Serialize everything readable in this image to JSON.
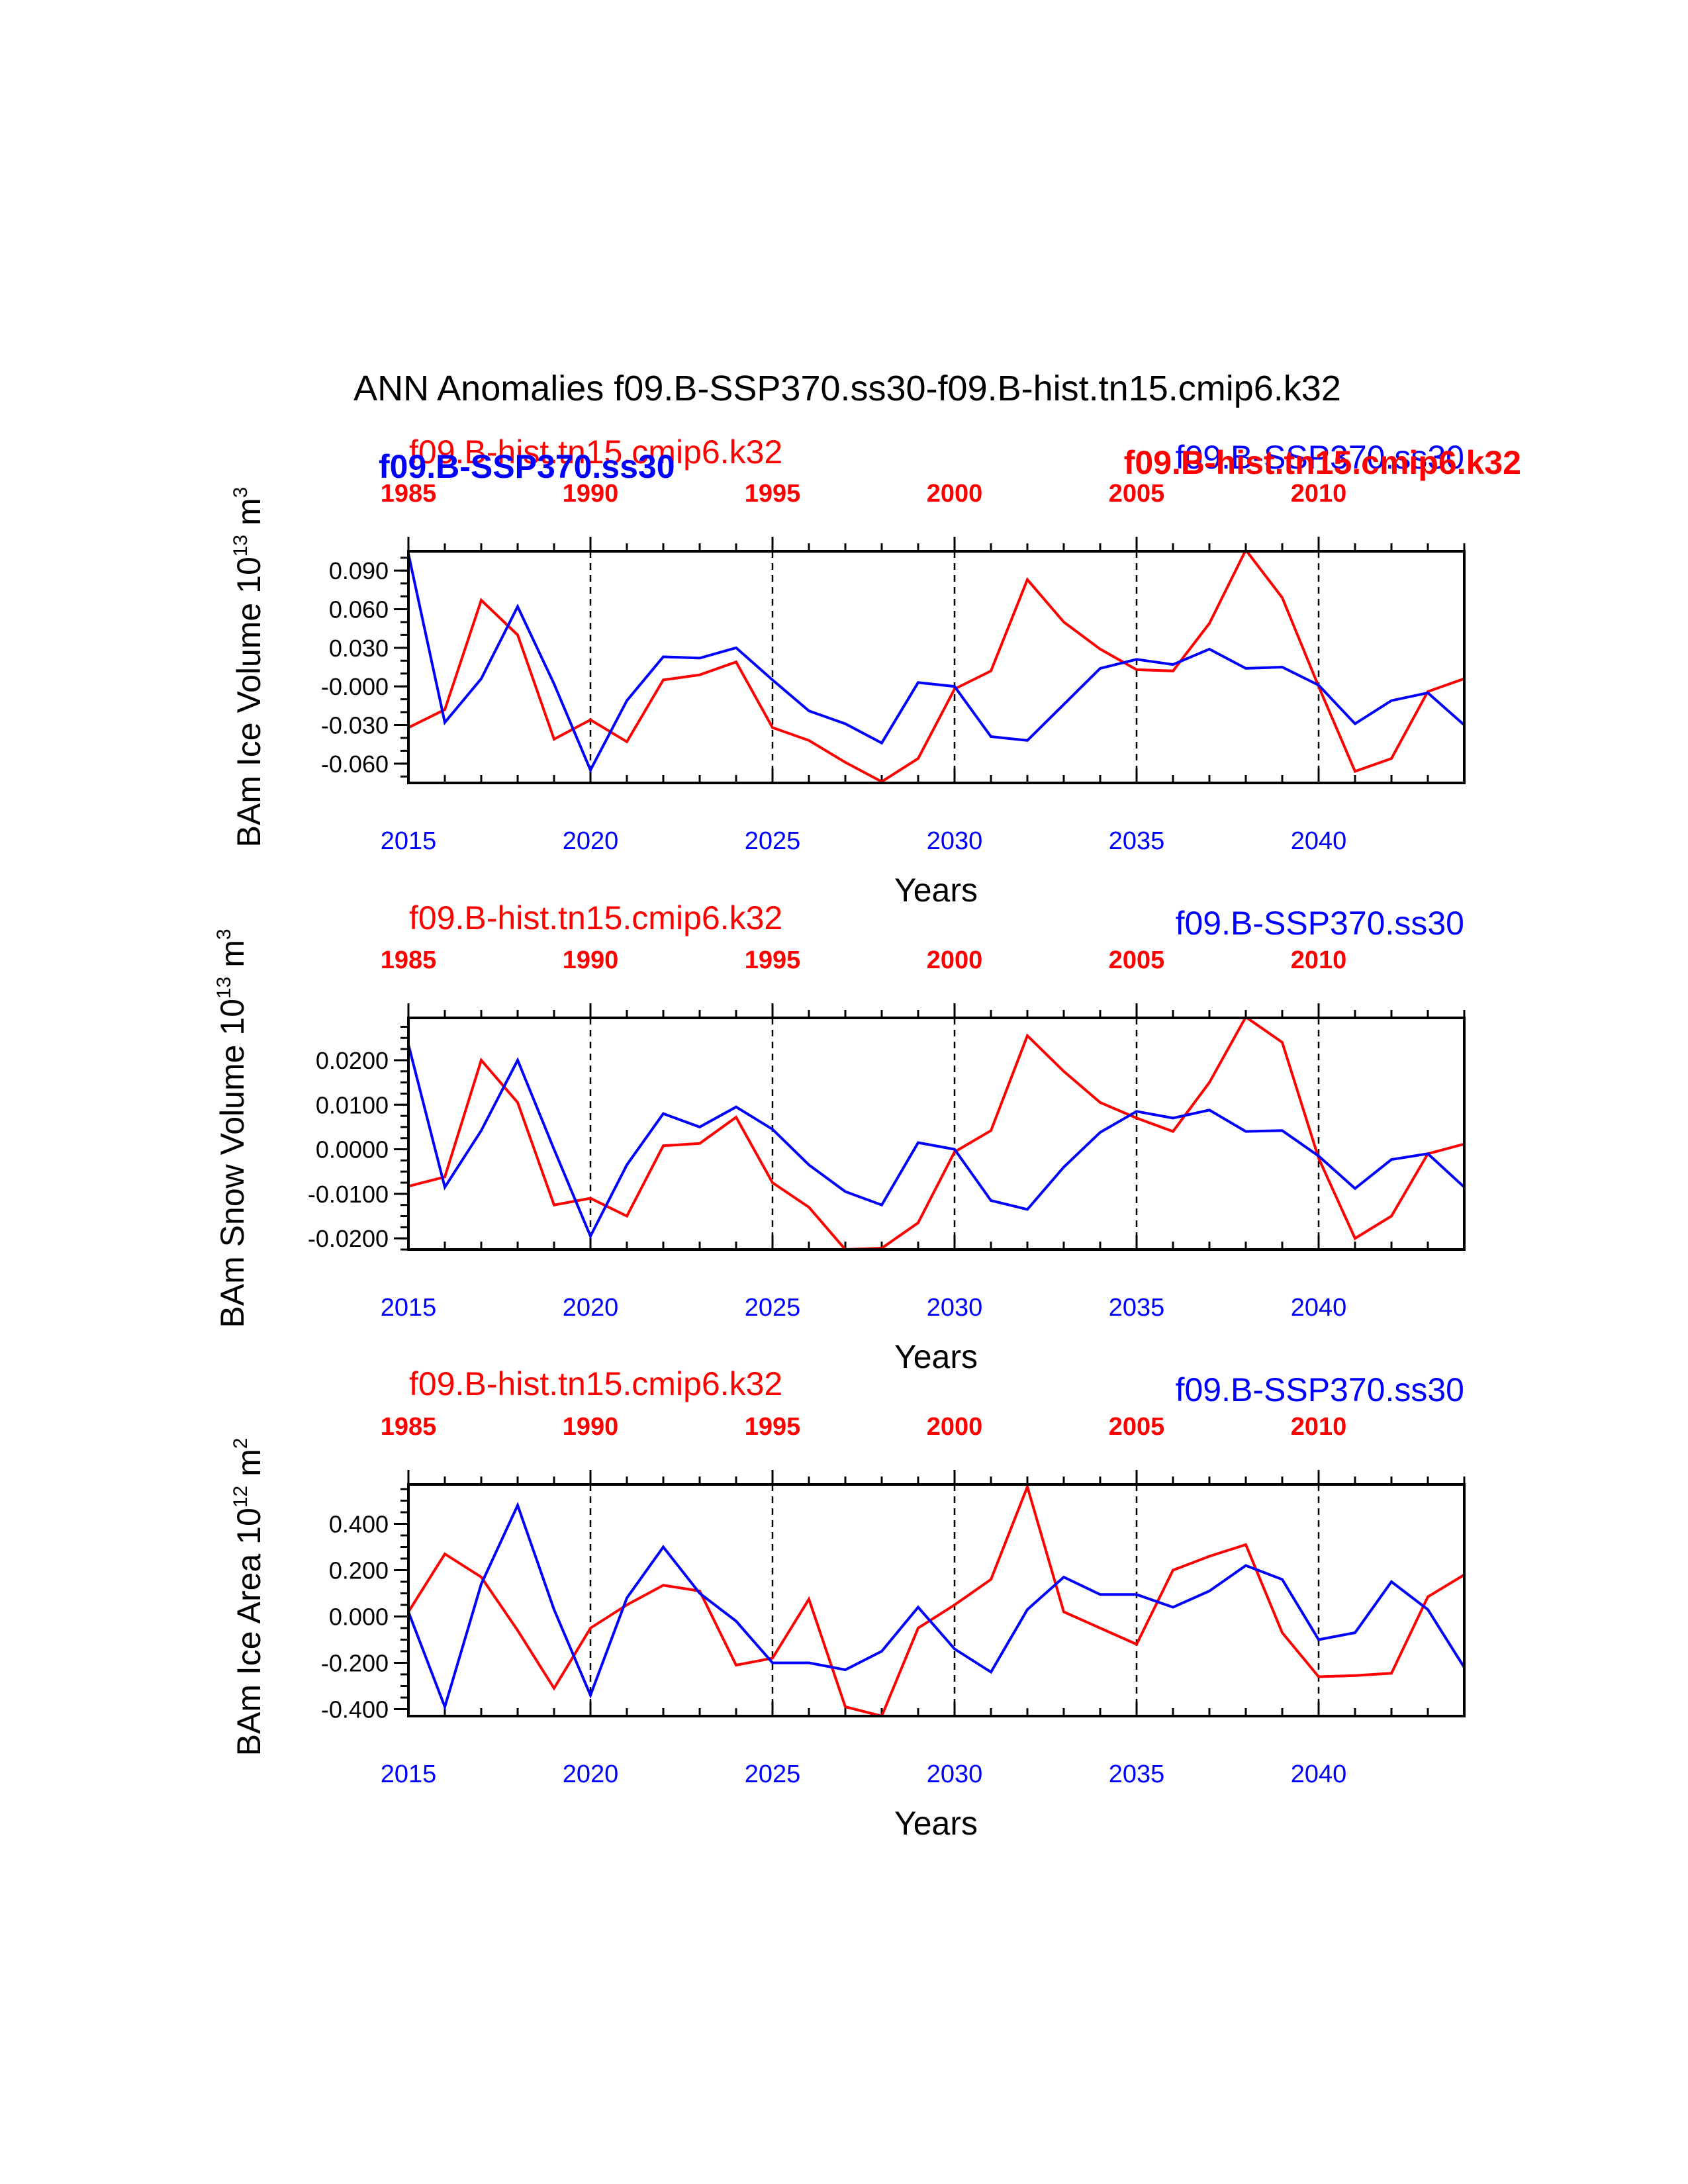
{
  "figure_title": "ANN Anomalies f09.B-SSP370.ss30-f09.B-hist.tn15.cmip6.k32",
  "colors": {
    "ssp": "#0000ff",
    "hist": "#ff0000",
    "axis": "#000000"
  },
  "overlay_labels": {
    "ssp_bold": "f09.B-SSP370.ss30",
    "hist_bold": "f09.B-hist.tn15.cmip6.k32"
  },
  "chart_data": [
    {
      "type": "line",
      "id": "ice-volume",
      "title_left": "f09.B-hist.tn15.cmip6.k32",
      "title_right": "f09.B-SSP370.ss30",
      "ylabel": "BAm Ice Volume 10",
      "ylabel_exp": "13",
      "ylabel_unit": " m",
      "ylabel_unit_exp": "3",
      "xlabel": "Years",
      "xlim": [
        2015,
        2044
      ],
      "ylim": [
        -0.075,
        0.105
      ],
      "yticks": [
        -0.06,
        -0.03,
        0.0,
        0.03,
        0.06,
        0.09
      ],
      "ytick_labels": [
        "-0.060",
        "-0.030",
        "-0.000",
        "0.030",
        "0.060",
        "0.090"
      ],
      "yminor_step": 0.01,
      "xticks_bottom": [
        2015,
        2020,
        2025,
        2030,
        2035,
        2040
      ],
      "xtick_labels_bottom": [
        "2015",
        "2020",
        "2025",
        "2030",
        "2035",
        "2040"
      ],
      "xtick_labels_top": [
        "1985",
        "1990",
        "1995",
        "2000",
        "2005",
        "2010"
      ],
      "gridlines_x": [
        2020,
        2025,
        2030,
        2035,
        2040
      ],
      "x": [
        2015,
        2016,
        2017,
        2018,
        2019,
        2020,
        2021,
        2022,
        2023,
        2024,
        2025,
        2026,
        2027,
        2028,
        2029,
        2030,
        2031,
        2032,
        2033,
        2034,
        2035,
        2036,
        2037,
        2038,
        2039,
        2040,
        2041,
        2042,
        2043,
        2044
      ],
      "series": [
        {
          "name": "f09.B-hist.tn15.cmip6.k32",
          "color": "#ff0000",
          "values": [
            -0.032,
            -0.018,
            0.067,
            0.04,
            -0.041,
            -0.026,
            -0.043,
            0.005,
            0.009,
            0.019,
            -0.032,
            -0.042,
            -0.059,
            -0.074,
            -0.056,
            -0.002,
            0.012,
            0.083,
            0.05,
            0.029,
            0.013,
            0.012,
            0.049,
            0.106,
            0.069,
            0.0,
            -0.066,
            -0.056,
            -0.004,
            0.006
          ]
        },
        {
          "name": "f09.B-SSP370.ss30",
          "color": "#0000ff",
          "values": [
            0.103,
            -0.028,
            0.006,
            0.062,
            0.002,
            -0.065,
            -0.011,
            0.023,
            0.022,
            0.03,
            0.005,
            -0.019,
            -0.029,
            -0.044,
            0.003,
            0.0,
            -0.039,
            -0.042,
            -0.014,
            0.014,
            0.021,
            0.017,
            0.029,
            0.014,
            0.015,
            0.001,
            -0.029,
            -0.011,
            -0.005,
            -0.03
          ]
        }
      ]
    },
    {
      "type": "line",
      "id": "snow-volume",
      "title_left": "f09.B-hist.tn15.cmip6.k32",
      "title_right": "f09.B-SSP370.ss30",
      "ylabel": "BAm Snow Volume 10",
      "ylabel_exp": "13",
      "ylabel_unit": " m",
      "ylabel_unit_exp": "3",
      "xlabel": "Years",
      "xlim": [
        2015,
        2044
      ],
      "ylim": [
        -0.0225,
        0.0295
      ],
      "yticks": [
        -0.02,
        -0.01,
        0.0,
        0.01,
        0.02
      ],
      "ytick_labels": [
        "-0.0200",
        "-0.0100",
        "0.0000",
        "0.0100",
        "0.0200"
      ],
      "yminor_step": 0.0025,
      "xticks_bottom": [
        2015,
        2020,
        2025,
        2030,
        2035,
        2040
      ],
      "xtick_labels_bottom": [
        "2015",
        "2020",
        "2025",
        "2030",
        "2035",
        "2040"
      ],
      "xtick_labels_top": [
        "1985",
        "1990",
        "1995",
        "2000",
        "2005",
        "2010"
      ],
      "gridlines_x": [
        2020,
        2025,
        2030,
        2035,
        2040
      ],
      "x": [
        2015,
        2016,
        2017,
        2018,
        2019,
        2020,
        2021,
        2022,
        2023,
        2024,
        2025,
        2026,
        2027,
        2028,
        2029,
        2030,
        2031,
        2032,
        2033,
        2034,
        2035,
        2036,
        2037,
        2038,
        2039,
        2040,
        2041,
        2042,
        2043,
        2044
      ],
      "series": [
        {
          "name": "f09.B-hist.tn15.cmip6.k32",
          "color": "#ff0000",
          "values": [
            -0.0083,
            -0.0062,
            0.02,
            0.0105,
            -0.0125,
            -0.011,
            -0.015,
            0.0008,
            0.0013,
            0.0072,
            -0.0075,
            -0.013,
            -0.0225,
            -0.0222,
            -0.0165,
            -0.0006,
            0.0042,
            0.0255,
            0.0175,
            0.0105,
            0.007,
            0.004,
            0.015,
            0.0297,
            0.024,
            -0.002,
            -0.02,
            -0.015,
            -0.001,
            0.0012
          ]
        },
        {
          "name": "f09.B-SSP370.ss30",
          "color": "#0000ff",
          "values": [
            0.0235,
            -0.0085,
            0.0042,
            0.02,
            0.0,
            -0.0195,
            -0.0035,
            0.008,
            0.005,
            0.0095,
            0.0045,
            -0.0035,
            -0.0095,
            -0.0125,
            0.0015,
            0.0,
            -0.0115,
            -0.0135,
            -0.004,
            0.0038,
            0.0085,
            0.007,
            0.0088,
            0.004,
            0.0042,
            -0.0015,
            -0.0088,
            -0.0023,
            -0.001,
            -0.0085
          ]
        }
      ]
    },
    {
      "type": "line",
      "id": "ice-area",
      "title_left": "f09.B-hist.tn15.cmip6.k32",
      "title_right": "f09.B-SSP370.ss30",
      "ylabel": "BAm Ice Area 10",
      "ylabel_exp": "12",
      "ylabel_unit": " m",
      "ylabel_unit_exp": "2",
      "xlabel": "Years",
      "xlim": [
        2015,
        2044
      ],
      "ylim": [
        -0.43,
        0.57
      ],
      "yticks": [
        -0.4,
        -0.2,
        0.0,
        0.2,
        0.4
      ],
      "ytick_labels": [
        "-0.400",
        "-0.200",
        "0.000",
        "0.200",
        "0.400"
      ],
      "yminor_step": 0.05,
      "xticks_bottom": [
        2015,
        2020,
        2025,
        2030,
        2035,
        2040
      ],
      "xtick_labels_bottom": [
        "2015",
        "2020",
        "2025",
        "2030",
        "2035",
        "2040"
      ],
      "xtick_labels_top": [
        "1985",
        "1990",
        "1995",
        "2000",
        "2005",
        "2010"
      ],
      "gridlines_x": [
        2020,
        2025,
        2030,
        2035,
        2040
      ],
      "x": [
        2015,
        2016,
        2017,
        2018,
        2019,
        2020,
        2021,
        2022,
        2023,
        2024,
        2025,
        2026,
        2027,
        2028,
        2029,
        2030,
        2031,
        2032,
        2033,
        2034,
        2035,
        2036,
        2037,
        2038,
        2039,
        2040,
        2041,
        2042,
        2043,
        2044
      ],
      "series": [
        {
          "name": "f09.B-hist.tn15.cmip6.k32",
          "color": "#ff0000",
          "values": [
            0.02,
            0.27,
            0.17,
            -0.06,
            -0.31,
            -0.05,
            0.05,
            0.135,
            0.11,
            -0.21,
            -0.18,
            0.075,
            -0.39,
            -0.43,
            -0.05,
            0.05,
            0.16,
            0.56,
            0.02,
            -0.05,
            -0.12,
            0.2,
            0.26,
            0.31,
            -0.07,
            -0.26,
            -0.255,
            -0.245,
            0.085,
            0.18
          ]
        },
        {
          "name": "f09.B-SSP370.ss30",
          "color": "#0000ff",
          "values": [
            0.02,
            -0.39,
            0.14,
            0.48,
            0.03,
            -0.34,
            0.08,
            0.3,
            0.1,
            -0.02,
            -0.2,
            -0.2,
            -0.23,
            -0.15,
            0.04,
            -0.14,
            -0.24,
            0.03,
            0.17,
            0.095,
            0.095,
            0.04,
            0.11,
            0.22,
            0.16,
            -0.1,
            -0.07,
            0.15,
            0.03,
            -0.22
          ]
        }
      ]
    }
  ]
}
